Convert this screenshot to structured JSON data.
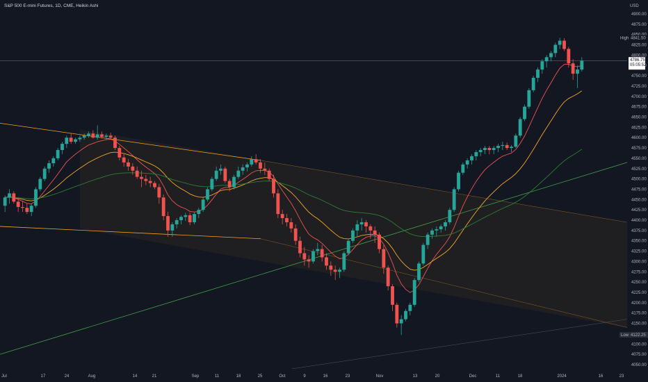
{
  "header": {
    "title": "S&P 500 E-mini Futures, 1D, CME, Heikin Ashi",
    "currency": "USD"
  },
  "colors": {
    "background": "#131722",
    "up": "#26a69a",
    "down": "#ef5350",
    "ma_fast": "#ef5350",
    "ma_mid": "#f5a623",
    "ma_slow": "#2e7d32",
    "trendline_green": "#43a047",
    "channel": "#f5a623",
    "current_line": "#787b86"
  },
  "price_scale": {
    "ticks": [
      "4900.00",
      "4875.00",
      "4850.00",
      "4825.00",
      "4800.00",
      "4775.00",
      "4750.00",
      "4725.00",
      "4700.00",
      "4675.00",
      "4650.00",
      "4625.00",
      "4600.00",
      "4575.00",
      "4550.00",
      "4525.00",
      "4500.00",
      "4475.00",
      "4450.00",
      "4425.00",
      "4400.00",
      "4375.00",
      "4350.00",
      "4325.00",
      "4300.00",
      "4275.00",
      "4250.00",
      "4225.00",
      "4200.00",
      "4175.00",
      "4150.00",
      "4125.00",
      "4100.00",
      "4075.00",
      "4050.00"
    ],
    "high_label": "High",
    "high_value": "4841.50",
    "low_label": "Low",
    "low_value": "4122.25",
    "last_price": "4786.75",
    "last_countdown": "05:05:52"
  },
  "time_axis": {
    "labels": [
      "Jul",
      "17",
      "24",
      "Aug",
      "14",
      "21",
      "Sep",
      "11",
      "18",
      "25",
      "Oct",
      "9",
      "16",
      "23",
      "Nov",
      "13",
      "20",
      "Dec",
      "11",
      "18",
      "2024",
      "16",
      "23"
    ]
  },
  "chart_data": {
    "type": "candlestick",
    "style": "Heikin Ashi",
    "timeframe": "1D",
    "ylim": [
      4050,
      4910
    ],
    "candle_count": 132,
    "ohlc": [
      [
        4435,
        4460,
        4420,
        4455
      ],
      [
        4455,
        4475,
        4440,
        4465
      ],
      [
        4465,
        4470,
        4440,
        4445
      ],
      [
        4445,
        4455,
        4420,
        4432
      ],
      [
        4432,
        4445,
        4420,
        4430
      ],
      [
        4430,
        4440,
        4415,
        4420
      ],
      [
        4420,
        4440,
        4410,
        4435
      ],
      [
        4435,
        4480,
        4430,
        4475
      ],
      [
        4475,
        4505,
        4470,
        4500
      ],
      [
        4500,
        4530,
        4495,
        4525
      ],
      [
        4525,
        4545,
        4515,
        4538
      ],
      [
        4538,
        4555,
        4530,
        4550
      ],
      [
        4550,
        4575,
        4545,
        4570
      ],
      [
        4570,
        4590,
        4560,
        4585
      ],
      [
        4585,
        4605,
        4575,
        4600
      ],
      [
        4600,
        4610,
        4585,
        4590
      ],
      [
        4590,
        4600,
        4585,
        4596
      ],
      [
        4596,
        4605,
        4590,
        4600
      ],
      [
        4600,
        4610,
        4595,
        4605
      ],
      [
        4605,
        4615,
        4600,
        4610
      ],
      [
        4610,
        4618,
        4598,
        4600
      ],
      [
        4600,
        4630,
        4595,
        4608
      ],
      [
        4608,
        4615,
        4598,
        4602
      ],
      [
        4602,
        4610,
        4595,
        4605
      ],
      [
        4605,
        4612,
        4595,
        4600
      ],
      [
        4600,
        4605,
        4570,
        4575
      ],
      [
        4575,
        4580,
        4545,
        4552
      ],
      [
        4552,
        4560,
        4530,
        4540
      ],
      [
        4540,
        4548,
        4520,
        4530
      ],
      [
        4530,
        4538,
        4510,
        4520
      ],
      [
        4520,
        4530,
        4500,
        4505
      ],
      [
        4505,
        4520,
        4480,
        4500
      ],
      [
        4500,
        4510,
        4485,
        4495
      ],
      [
        4495,
        4505,
        4480,
        4490
      ],
      [
        4490,
        4495,
        4475,
        4480
      ],
      [
        4480,
        4488,
        4440,
        4455
      ],
      [
        4455,
        4462,
        4400,
        4410
      ],
      [
        4410,
        4420,
        4360,
        4375
      ],
      [
        4375,
        4395,
        4360,
        4390
      ],
      [
        4390,
        4405,
        4380,
        4400
      ],
      [
        4400,
        4412,
        4390,
        4408
      ],
      [
        4408,
        4418,
        4398,
        4412
      ],
      [
        4412,
        4418,
        4388,
        4395
      ],
      [
        4395,
        4420,
        4390,
        4415
      ],
      [
        4415,
        4430,
        4405,
        4425
      ],
      [
        4425,
        4455,
        4420,
        4450
      ],
      [
        4450,
        4480,
        4445,
        4475
      ],
      [
        4475,
        4505,
        4470,
        4500
      ],
      [
        4500,
        4530,
        4495,
        4520
      ],
      [
        4520,
        4535,
        4510,
        4525
      ],
      [
        4525,
        4530,
        4490,
        4495
      ],
      [
        4495,
        4500,
        4470,
        4480
      ],
      [
        4480,
        4510,
        4475,
        4505
      ],
      [
        4505,
        4530,
        4500,
        4520
      ],
      [
        4520,
        4535,
        4510,
        4528
      ],
      [
        4528,
        4540,
        4518,
        4535
      ],
      [
        4535,
        4555,
        4530,
        4548
      ],
      [
        4548,
        4560,
        4535,
        4540
      ],
      [
        4540,
        4548,
        4515,
        4525
      ],
      [
        4525,
        4540,
        4510,
        4520
      ],
      [
        4520,
        4525,
        4495,
        4500
      ],
      [
        4500,
        4510,
        4455,
        4465
      ],
      [
        4465,
        4475,
        4405,
        4415
      ],
      [
        4415,
        4425,
        4390,
        4405
      ],
      [
        4405,
        4415,
        4385,
        4395
      ],
      [
        4395,
        4405,
        4370,
        4380
      ],
      [
        4380,
        4390,
        4340,
        4350
      ],
      [
        4350,
        4360,
        4310,
        4320
      ],
      [
        4320,
        4335,
        4290,
        4305
      ],
      [
        4305,
        4315,
        4285,
        4300
      ],
      [
        4300,
        4330,
        4295,
        4325
      ],
      [
        4325,
        4345,
        4315,
        4330
      ],
      [
        4330,
        4340,
        4300,
        4310
      ],
      [
        4310,
        4320,
        4280,
        4290
      ],
      [
        4290,
        4300,
        4265,
        4280
      ],
      [
        4280,
        4290,
        4255,
        4275
      ],
      [
        4275,
        4285,
        4260,
        4280
      ],
      [
        4280,
        4325,
        4275,
        4320
      ],
      [
        4320,
        4355,
        4315,
        4350
      ],
      [
        4350,
        4380,
        4345,
        4375
      ],
      [
        4375,
        4400,
        4360,
        4390
      ],
      [
        4390,
        4405,
        4375,
        4395
      ],
      [
        4395,
        4400,
        4370,
        4385
      ],
      [
        4385,
        4390,
        4355,
        4375
      ],
      [
        4375,
        4385,
        4345,
        4365
      ],
      [
        4365,
        4370,
        4320,
        4330
      ],
      [
        4330,
        4340,
        4270,
        4285
      ],
      [
        4285,
        4290,
        4230,
        4240
      ],
      [
        4240,
        4245,
        4180,
        4195
      ],
      [
        4195,
        4200,
        4140,
        4150
      ],
      [
        4150,
        4170,
        4122,
        4160
      ],
      [
        4160,
        4185,
        4155,
        4180
      ],
      [
        4180,
        4200,
        4170,
        4195
      ],
      [
        4195,
        4260,
        4190,
        4255
      ],
      [
        4255,
        4300,
        4250,
        4295
      ],
      [
        4295,
        4345,
        4290,
        4340
      ],
      [
        4340,
        4370,
        4330,
        4365
      ],
      [
        4365,
        4380,
        4355,
        4375
      ],
      [
        4375,
        4385,
        4360,
        4378
      ],
      [
        4378,
        4390,
        4370,
        4385
      ],
      [
        4385,
        4400,
        4375,
        4395
      ],
      [
        4395,
        4430,
        4390,
        4425
      ],
      [
        4425,
        4480,
        4420,
        4475
      ],
      [
        4475,
        4520,
        4470,
        4515
      ],
      [
        4515,
        4540,
        4510,
        4535
      ],
      [
        4535,
        4550,
        4525,
        4545
      ],
      [
        4545,
        4560,
        4535,
        4555
      ],
      [
        4555,
        4570,
        4545,
        4565
      ],
      [
        4565,
        4575,
        4555,
        4570
      ],
      [
        4570,
        4580,
        4560,
        4575
      ],
      [
        4575,
        4580,
        4560,
        4570
      ],
      [
        4570,
        4580,
        4560,
        4575
      ],
      [
        4575,
        4585,
        4565,
        4580
      ],
      [
        4580,
        4590,
        4570,
        4582
      ],
      [
        4582,
        4588,
        4570,
        4575
      ],
      [
        4575,
        4582,
        4565,
        4578
      ],
      [
        4578,
        4610,
        4575,
        4605
      ],
      [
        4605,
        4650,
        4600,
        4645
      ],
      [
        4645,
        4680,
        4640,
        4675
      ],
      [
        4675,
        4720,
        4670,
        4715
      ],
      [
        4715,
        4750,
        4710,
        4745
      ],
      [
        4745,
        4770,
        4735,
        4765
      ],
      [
        4765,
        4790,
        4755,
        4785
      ],
      [
        4785,
        4800,
        4770,
        4795
      ],
      [
        4795,
        4810,
        4785,
        4805
      ],
      [
        4805,
        4830,
        4795,
        4825
      ],
      [
        4825,
        4842,
        4815,
        4835
      ],
      [
        4835,
        4841,
        4810,
        4815
      ],
      [
        4815,
        4820,
        4770,
        4780
      ],
      [
        4780,
        4790,
        4740,
        4755
      ],
      [
        4755,
        4775,
        4720,
        4765
      ],
      [
        4765,
        4795,
        4760,
        4786
      ]
    ],
    "moving_averages": [
      {
        "color": "#ef5350",
        "period": "fast"
      },
      {
        "color": "#f5a623",
        "period": "mid"
      },
      {
        "color": "#2e7d32",
        "period": "slow"
      }
    ]
  }
}
